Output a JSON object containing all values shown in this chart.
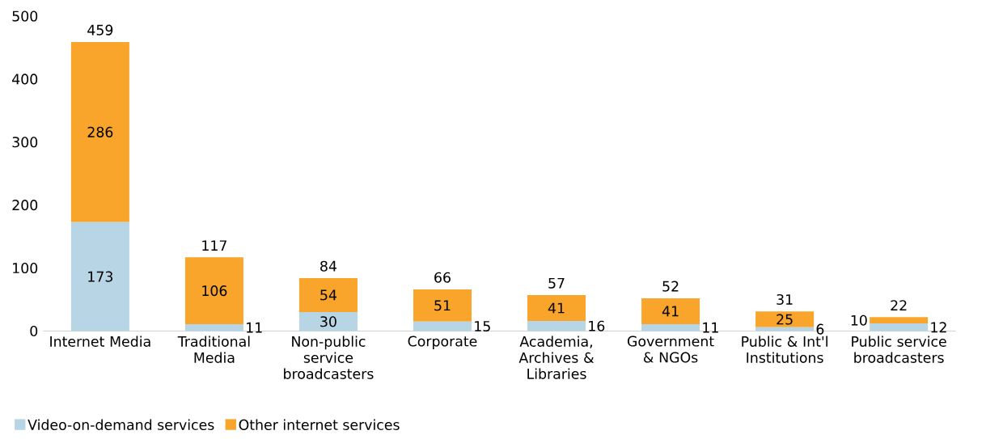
{
  "chart_data": {
    "type": "bar",
    "stacked": true,
    "categories": [
      "Internet Media",
      "Traditional Media",
      "Non-public service broadcasters",
      "Corporate",
      "Academia, Archives & Libraries",
      "Government & NGOs",
      "Public & Int'l Institutions",
      "Public service broadcasters"
    ],
    "series": [
      {
        "name": "Video-on-demand services",
        "color": "#b7d5e4",
        "values": [
          173,
          11,
          30,
          15,
          16,
          11,
          6,
          12
        ]
      },
      {
        "name": "Other internet services",
        "color": "#f9a52b",
        "values": [
          286,
          106,
          54,
          51,
          41,
          41,
          25,
          10
        ]
      }
    ],
    "totals": [
      "459",
      "117",
      "84",
      "66",
      "57",
      "52",
      "31",
      "22"
    ],
    "data_labels": true,
    "ylim": [
      0,
      500
    ],
    "yticks": [
      0,
      100,
      200,
      300,
      400,
      500
    ],
    "grid": false,
    "legend": "bottom left"
  }
}
